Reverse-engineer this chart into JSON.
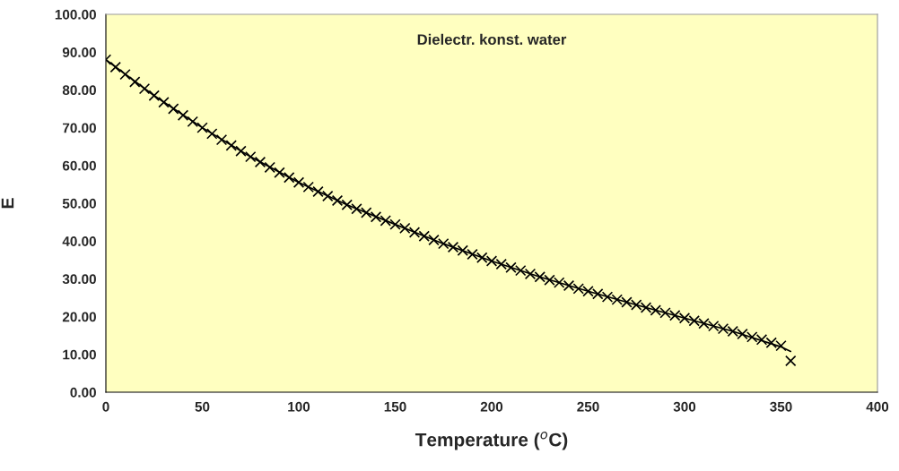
{
  "chart_data": {
    "type": "scatter",
    "title": "Dielectr. konst. water",
    "xlabel": "Temperature ($^{o}$C)",
    "ylabel": "E",
    "series": [
      {
        "marker": "cross",
        "color": "#000000",
        "x": [
          0,
          5,
          10,
          15,
          20,
          25,
          30,
          35,
          40,
          45,
          50,
          55,
          60,
          65,
          70,
          75,
          80,
          85,
          90,
          95,
          100,
          105,
          110,
          115,
          120,
          125,
          130,
          135,
          140,
          145,
          150,
          155,
          160,
          165,
          170,
          175,
          180,
          185,
          190,
          195,
          200,
          205,
          210,
          215,
          220,
          225,
          230,
          235,
          240,
          245,
          250,
          255,
          260,
          265,
          270,
          275,
          280,
          285,
          290,
          295,
          300,
          305,
          310,
          315,
          320,
          325,
          330,
          335,
          340,
          345,
          350,
          355
        ],
        "values": [
          88.0,
          86.0,
          84.1,
          82.1,
          80.3,
          78.5,
          76.7,
          75.0,
          73.3,
          71.6,
          70.0,
          68.4,
          66.8,
          65.3,
          63.8,
          62.3,
          60.9,
          59.5,
          58.1,
          56.8,
          55.5,
          54.3,
          53.1,
          51.9,
          50.7,
          49.6,
          48.5,
          47.5,
          46.4,
          45.4,
          44.4,
          43.4,
          42.3,
          41.3,
          40.3,
          39.3,
          38.4,
          37.5,
          36.5,
          35.6,
          34.7,
          33.9,
          33.0,
          32.2,
          31.3,
          30.5,
          29.7,
          29.0,
          28.2,
          27.4,
          26.7,
          26.0,
          25.2,
          24.5,
          23.8,
          23.1,
          22.4,
          21.7,
          21.0,
          20.3,
          19.6,
          18.9,
          18.2,
          17.5,
          16.8,
          16.1,
          15.4,
          14.6,
          13.9,
          13.1,
          12.3,
          8.3
        ]
      },
      {
        "type": "line",
        "marker": "none",
        "line_style": "solid",
        "color": "#000000",
        "x": [
          0,
          25,
          50,
          75,
          100,
          125,
          150,
          175,
          200,
          225,
          250,
          275,
          300,
          325,
          350,
          355
        ],
        "values": [
          88.0,
          78.5,
          70.0,
          62.3,
          55.5,
          49.6,
          44.4,
          39.3,
          34.7,
          30.5,
          26.7,
          23.1,
          19.6,
          16.1,
          12.0,
          10.8
        ]
      }
    ],
    "xlim": [
      0,
      400
    ],
    "xticks": [
      0,
      50,
      100,
      150,
      200,
      250,
      300,
      350,
      400
    ],
    "ylim": [
      0,
      100
    ],
    "yticks": [
      {
        "value": 0,
        "label": "0.00"
      },
      {
        "value": 10,
        "label": "10.00"
      },
      {
        "value": 20,
        "label": "20.00"
      },
      {
        "value": 30,
        "label": "30.00"
      },
      {
        "value": 40,
        "label": "40.00"
      },
      {
        "value": 50,
        "label": "50.00"
      },
      {
        "value": 60,
        "label": "60.00"
      },
      {
        "value": 70,
        "label": "70.00"
      },
      {
        "value": 80,
        "label": "80.00"
      },
      {
        "value": 90,
        "label": "90.00"
      },
      {
        "value": 100,
        "label": "100.00"
      }
    ],
    "grid": false,
    "legend": false
  }
}
